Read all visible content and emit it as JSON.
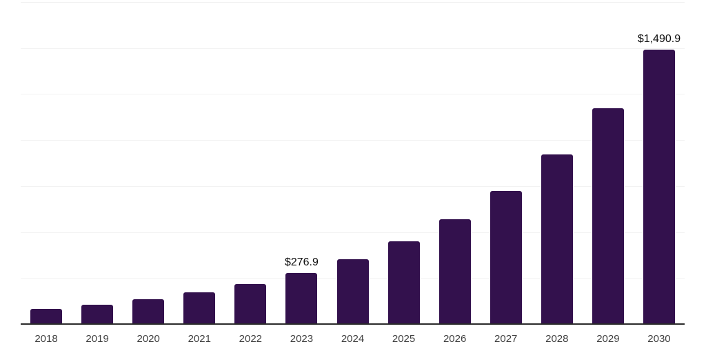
{
  "chart_data": {
    "type": "bar",
    "title": "",
    "xlabel": "",
    "ylabel": "",
    "categories": [
      "2018",
      "2019",
      "2020",
      "2021",
      "2022",
      "2023",
      "2024",
      "2025",
      "2026",
      "2027",
      "2028",
      "2029",
      "2030"
    ],
    "values": [
      83,
      106,
      135,
      171,
      218,
      276.9,
      352,
      448,
      570,
      725,
      922,
      1173,
      1490.9
    ],
    "bar_labels": [
      {
        "category": "2023",
        "text": "$276.9"
      },
      {
        "category": "2030",
        "text": "$1,490.9"
      }
    ],
    "ylim": [
      0,
      1750
    ],
    "grid_step": 250,
    "grid": "horizontal",
    "legend": "none",
    "axis_ticks_shown": "x-only",
    "colors": {
      "bar": "#33114d",
      "axis_line": "#2a2a2a",
      "gridline": "#f2f2f2",
      "tick_label": "#3f3f3f",
      "value_label": "#0d0d0d",
      "background": "#ffffff"
    }
  }
}
